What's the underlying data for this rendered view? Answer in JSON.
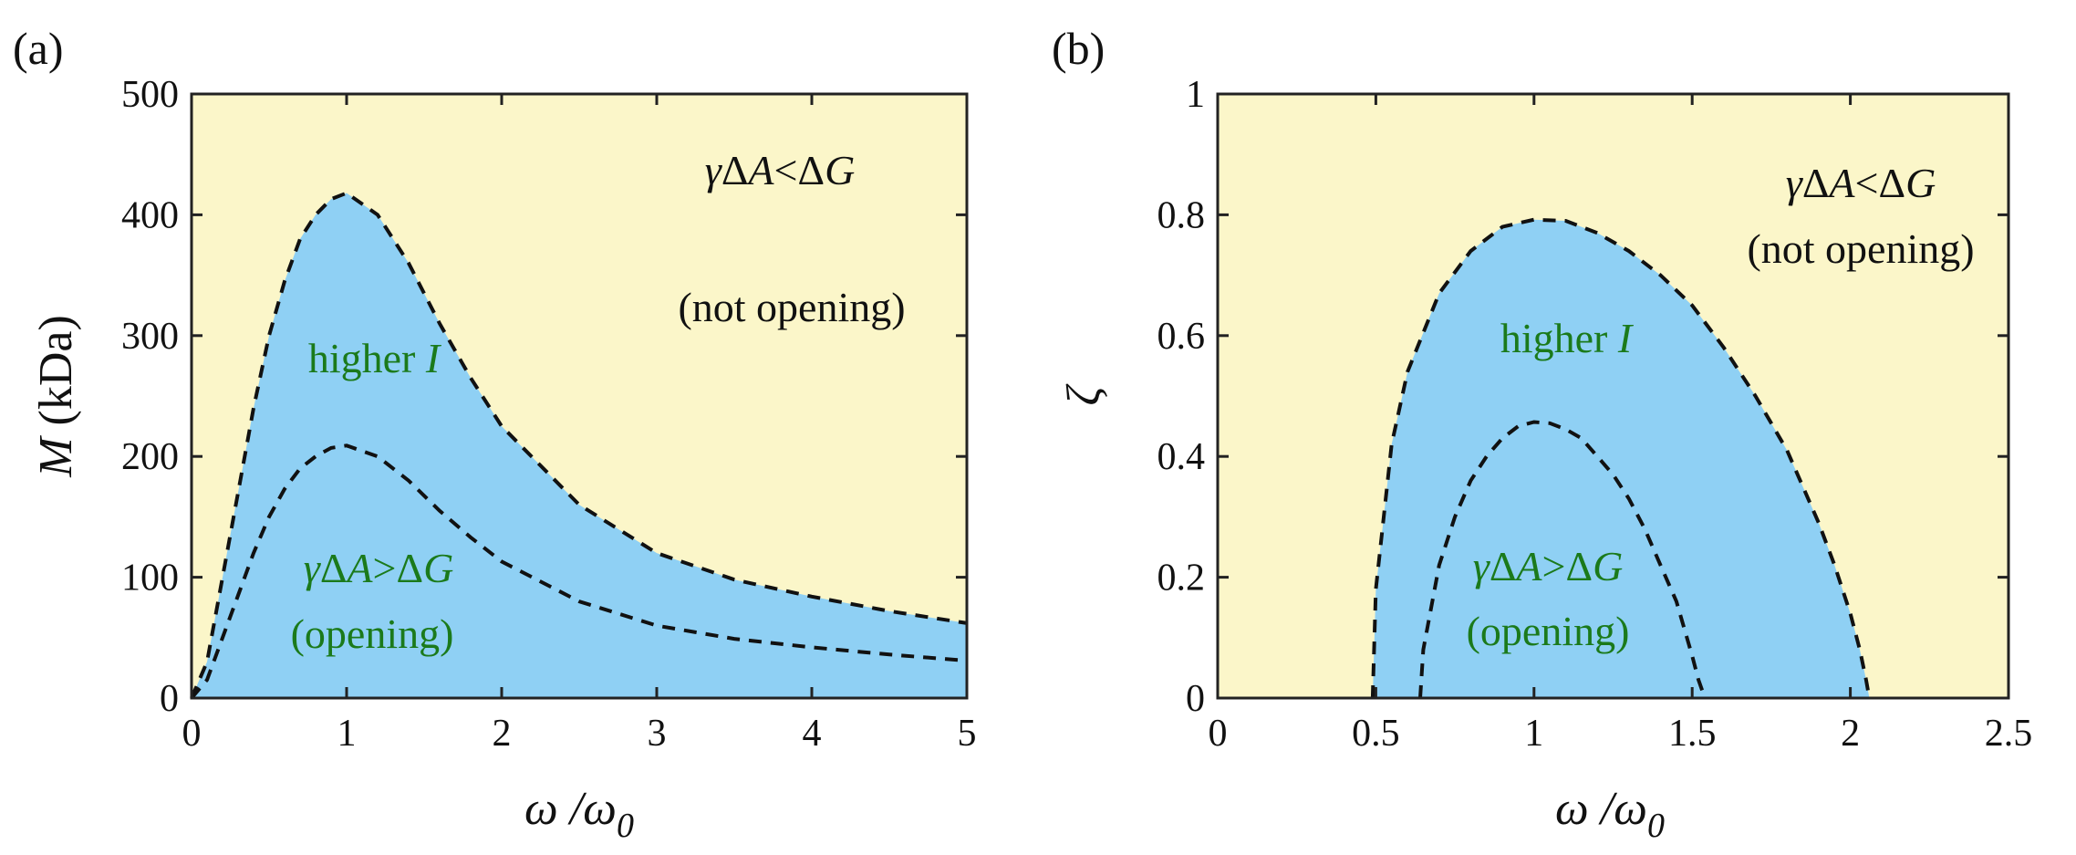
{
  "chart_data": [
    {
      "type": "area",
      "panel_label": "(a)",
      "xlabel": "ω /ω0",
      "xlabel_main": "ω /ω",
      "xlabel_sub": "0",
      "ylabel": "M (kDa)",
      "ylabel_symbol": "M",
      "ylabel_unit": " (kDa)",
      "xlim": [
        0,
        5
      ],
      "ylim": [
        0,
        500
      ],
      "xticks": [
        0,
        1,
        2,
        3,
        4,
        5
      ],
      "yticks": [
        0,
        100,
        200,
        300,
        400,
        500
      ],
      "grid": false,
      "series": [
        {
          "x": [
            0,
            0.1,
            0.2,
            0.3,
            0.4,
            0.5,
            0.6,
            0.7,
            0.8,
            0.9,
            1.0,
            1.2,
            1.4,
            1.6,
            1.8,
            2.0,
            2.5,
            3.0,
            3.5,
            4.0,
            4.5,
            5.0
          ],
          "y": [
            0,
            30,
            100,
            170,
            240,
            300,
            345,
            380,
            400,
            413,
            418,
            400,
            360,
            310,
            265,
            225,
            160,
            120,
            98,
            84,
            72,
            62
          ]
        },
        {
          "x": [
            0,
            0.1,
            0.2,
            0.3,
            0.4,
            0.5,
            0.6,
            0.7,
            0.8,
            0.9,
            1.0,
            1.2,
            1.4,
            1.6,
            1.8,
            2.0,
            2.5,
            3.0,
            3.5,
            4.0,
            4.5,
            5.0
          ],
          "y": [
            0,
            15,
            50,
            85,
            120,
            150,
            173,
            190,
            200,
            207,
            209,
            200,
            180,
            155,
            133,
            113,
            80,
            60,
            49,
            42,
            36,
            31
          ]
        }
      ],
      "fill_colors": {
        "outside": "#fbf6c9",
        "inside": "#8fd0f4"
      },
      "annotations": {
        "outer_relation": {
          "gamma": "γ",
          "delta1": "Δ",
          "A": "A",
          "op": "<",
          "delta2": "Δ",
          "G": "G"
        },
        "outer_note": "(not opening)",
        "middle_prefix": "higher ",
        "middle_var": "I",
        "inner_relation": {
          "gamma": "γ",
          "delta1": "Δ",
          "A": "A",
          "op": ">",
          "delta2": "Δ",
          "G": "G"
        },
        "inner_note": "(opening)"
      }
    },
    {
      "type": "area",
      "panel_label": "(b)",
      "xlabel": "ω /ω0",
      "xlabel_main": "ω /ω",
      "xlabel_sub": "0",
      "ylabel": "ζ",
      "xlim": [
        0,
        2.5
      ],
      "ylim": [
        0,
        1
      ],
      "xticks": [
        0,
        0.5,
        1,
        1.5,
        2,
        2.5
      ],
      "yticks": [
        0,
        0.2,
        0.4,
        0.6,
        0.8,
        1
      ],
      "grid": false,
      "series": [
        {
          "x": [
            0.49,
            0.5,
            0.55,
            0.6,
            0.7,
            0.8,
            0.9,
            1.0,
            1.1,
            1.2,
            1.3,
            1.4,
            1.5,
            1.6,
            1.7,
            1.8,
            1.9,
            1.95,
            2.0,
            2.03,
            2.05,
            2.06
          ],
          "y": [
            0,
            0.18,
            0.42,
            0.54,
            0.67,
            0.74,
            0.78,
            0.792,
            0.79,
            0.77,
            0.74,
            0.7,
            0.65,
            0.58,
            0.5,
            0.41,
            0.29,
            0.22,
            0.14,
            0.08,
            0.03,
            0
          ]
        },
        {
          "x": [
            0.64,
            0.65,
            0.7,
            0.75,
            0.8,
            0.85,
            0.9,
            0.95,
            1.0,
            1.05,
            1.1,
            1.15,
            1.2,
            1.25,
            1.3,
            1.35,
            1.4,
            1.45,
            1.5,
            1.52,
            1.54
          ],
          "y": [
            0,
            0.08,
            0.22,
            0.3,
            0.36,
            0.4,
            0.43,
            0.45,
            0.457,
            0.455,
            0.445,
            0.43,
            0.4,
            0.37,
            0.33,
            0.28,
            0.22,
            0.16,
            0.07,
            0.03,
            0
          ]
        }
      ],
      "fill_colors": {
        "outside": "#fbf6c9",
        "inside": "#8fd0f4"
      },
      "annotations": {
        "outer_relation": {
          "gamma": "γ",
          "delta1": "Δ",
          "A": "A",
          "op": "<",
          "delta2": "Δ",
          "G": "G"
        },
        "outer_note": "(not opening)",
        "middle_prefix": "higher ",
        "middle_var": "I",
        "inner_relation": {
          "gamma": "γ",
          "delta1": "Δ",
          "A": "A",
          "op": ">",
          "delta2": "Δ",
          "G": "G"
        },
        "inner_note": "(opening)"
      }
    }
  ]
}
